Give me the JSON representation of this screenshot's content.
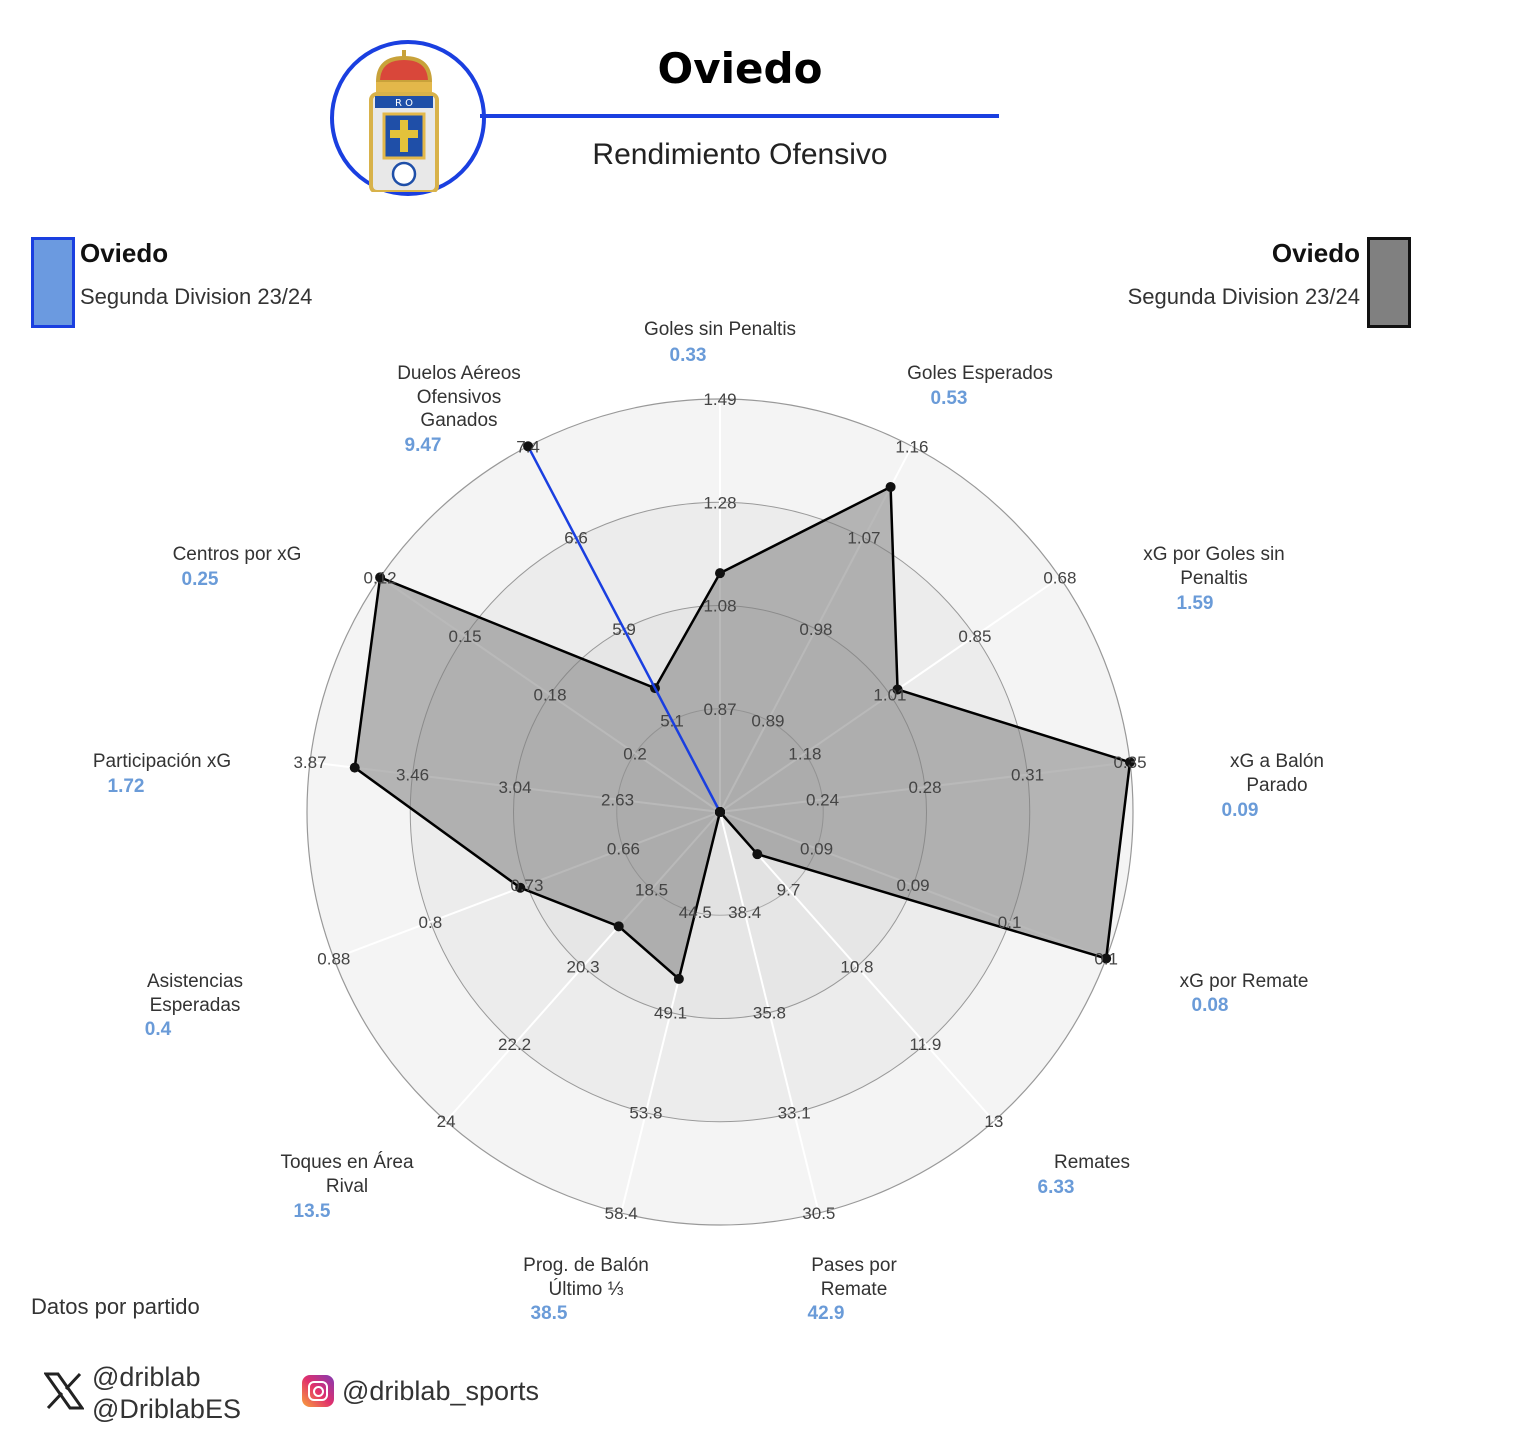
{
  "header": {
    "title": "Oviedo",
    "subtitle": "Rendimiento Ofensivo",
    "logo_text": "R O"
  },
  "legend": {
    "left": {
      "name": "Oviedo",
      "competition": "Segunda Division 23/24",
      "color": "#6b9ae0",
      "border": "#1a3fe0"
    },
    "right": {
      "name": "Oviedo",
      "competition": "Segunda Division 23/24",
      "color": "#808080",
      "border": "#111111"
    }
  },
  "chart_data": {
    "type": "radar",
    "title": "Rendimiento Ofensivo",
    "axes": [
      {
        "name": [
          "Goles sin Penaltis"
        ],
        "ticks": [
          "0.87",
          "1.08",
          "1.28",
          "1.49"
        ],
        "range": [
          0.66,
          1.49
        ],
        "value_label": "0.33"
      },
      {
        "name": [
          "Goles Esperados"
        ],
        "ticks": [
          "0.89",
          "0.98",
          "1.07",
          "1.16"
        ],
        "range": [
          0.8,
          1.16
        ],
        "value_label": "0.53"
      },
      {
        "name": [
          "xG por Goles sin",
          "Penaltis"
        ],
        "ticks": [
          "1.18",
          "1.01",
          "0.85",
          "0.68"
        ],
        "range": [
          1.35,
          0.68
        ],
        "value_label": "1.59"
      },
      {
        "name": [
          "xG a Balón",
          "Parado"
        ],
        "ticks": [
          "0.24",
          "0.28",
          "0.31",
          "0.35"
        ],
        "range": [
          0.2,
          0.35
        ],
        "value_label": "0.09"
      },
      {
        "name": [
          "xG por Remate"
        ],
        "ticks": [
          "0.09",
          "0.09",
          "0.1",
          "0.1"
        ],
        "range": [
          0.085,
          0.1
        ],
        "value_label": "0.08"
      },
      {
        "name": [
          "Remates"
        ],
        "ticks": [
          "9.7",
          "10.8",
          "11.9",
          "13"
        ],
        "range": [
          8.6,
          13
        ],
        "value_label": "6.33"
      },
      {
        "name": [
          "Pases por",
          "Remate"
        ],
        "ticks": [
          "38.4",
          "35.8",
          "33.1",
          "30.5"
        ],
        "range": [
          41.0,
          30.5
        ],
        "value_label": "42.9"
      },
      {
        "name": [
          "Prog. de Balón",
          "Último ⅓"
        ],
        "ticks": [
          "44.5",
          "49.1",
          "53.8",
          "58.4"
        ],
        "range": [
          39.9,
          58.4
        ],
        "value_label": "38.5"
      },
      {
        "name": [
          "Toques en Área",
          "Rival"
        ],
        "ticks": [
          "18.5",
          "20.3",
          "22.2",
          "24"
        ],
        "range": [
          16.7,
          24
        ],
        "value_label": "13.5"
      },
      {
        "name": [
          "Asistencias",
          "Esperadas"
        ],
        "ticks": [
          "0.66",
          "0.73",
          "0.8",
          "0.88"
        ],
        "range": [
          0.59,
          0.88
        ],
        "value_label": "0.4"
      },
      {
        "name": [
          "Participación xG"
        ],
        "ticks": [
          "2.63",
          "3.04",
          "3.46",
          "3.87"
        ],
        "range": [
          2.22,
          3.87
        ],
        "value_label": "1.72"
      },
      {
        "name": [
          "Centros por xG"
        ],
        "ticks": [
          "0.2",
          "0.18",
          "0.15",
          "0.12"
        ],
        "range": [
          0.22,
          0.12
        ],
        "value_label": "0.25"
      },
      {
        "name": [
          "Duelos Aéreos",
          "Ofensivos",
          "Ganados"
        ],
        "ticks": [
          "5.1",
          "5.9",
          "6.6",
          "7.4"
        ],
        "range": [
          4.3,
          7.4
        ],
        "value_label": "9.47"
      }
    ],
    "series": [
      {
        "name": "Oviedo (gris)",
        "color": "#808080",
        "values": [
          1.14,
          1.12,
          1.0,
          0.35,
          0.1,
          9.2,
          41.0,
          47.6,
          19.4,
          0.74,
          3.69,
          0.12,
          5.35
        ]
      },
      {
        "name": "Oviedo (azul)",
        "color": "#1a3fe0",
        "values": [
          0.33,
          0.53,
          1.59,
          0.09,
          0.08,
          6.33,
          42.9,
          38.5,
          13.5,
          0.4,
          1.72,
          0.25,
          9.47
        ]
      }
    ]
  },
  "footer": {
    "note": "Datos por partido",
    "x_handles": [
      "@driblab",
      "@DriblabES"
    ],
    "instagram_handle": "@driblab_sports"
  }
}
